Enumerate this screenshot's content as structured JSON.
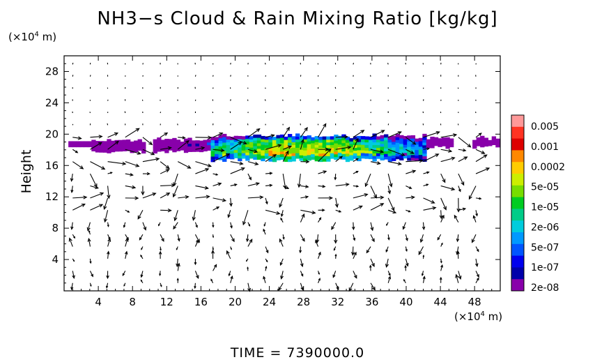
{
  "title": "NH3−s Cloud & Rain Mixing Ratio [kg/kg]",
  "y_unit": "(×10",
  "y_unit_exp": "4",
  "y_unit_tail": " m)",
  "x_unit": "(×10",
  "x_unit_exp": "4",
  "x_unit_tail": " m)",
  "ylabel": "Height",
  "time_label": "TIME  =  7390000.0",
  "chart_data": {
    "type": "heatmap",
    "title": "NH3−s Cloud & Rain Mixing Ratio [kg/kg]",
    "xlabel": "",
    "ylabel": "Height",
    "x_unit": "×10^4 m",
    "y_unit": "×10^4 m",
    "xlim": [
      0,
      51
    ],
    "ylim": [
      0,
      30
    ],
    "x_ticks": [
      4,
      8,
      12,
      16,
      20,
      24,
      28,
      32,
      36,
      40,
      44,
      48
    ],
    "y_ticks": [
      4,
      8,
      12,
      16,
      20,
      24,
      28
    ],
    "colorbar": {
      "labels": [
        "0.005",
        "0.001",
        "0.0002",
        "5e-05",
        "1e-05",
        "2e-06",
        "5e-07",
        "1e-07",
        "2e-08"
      ],
      "colors": [
        "#ff9999",
        "#ff3322",
        "#dd0000",
        "#ff8800",
        "#ffcc00",
        "#ccee00",
        "#77dd00",
        "#00cc22",
        "#00cc88",
        "#00ccdd",
        "#0099ff",
        "#0055ff",
        "#0000ee",
        "#0000aa",
        "#8800aa"
      ]
    },
    "cloud_layer": {
      "x_range": [
        0.5,
        50.5
      ],
      "z_range": [
        16.5,
        19.7
      ],
      "peak_x_range": [
        24,
        32
      ],
      "peak_z": 17
    },
    "overlay": "wind vectors"
  }
}
